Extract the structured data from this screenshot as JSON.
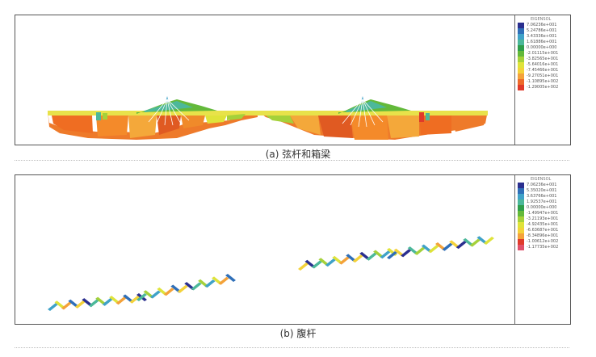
{
  "figure": {
    "panel_a": {
      "caption": "(a) 弦杆和箱梁",
      "legend_header": "EIGENSOL",
      "legend": [
        {
          "label": "7.06236e+001",
          "color": "#2b2f8f"
        },
        {
          "label": "5.24786e+001",
          "color": "#2f6fb8"
        },
        {
          "label": "3.43336e+001",
          "color": "#3fa2c8"
        },
        {
          "label": "1.61886e+001",
          "color": "#4cb89a"
        },
        {
          "label": "0.00000e+000",
          "color": "#2e9e4a"
        },
        {
          "label": "-2.01115e+001",
          "color": "#63b93a"
        },
        {
          "label": "-3.82565e+001",
          "color": "#a5d13a"
        },
        {
          "label": "-5.64016e+001",
          "color": "#dfe33a"
        },
        {
          "label": "-7.45466e+001",
          "color": "#f4d23a"
        },
        {
          "label": "-9.27051e+001",
          "color": "#f4a23a"
        },
        {
          "label": "-1.10895e+002",
          "color": "#ee6a2a"
        },
        {
          "label": "-1.29005e+002",
          "color": "#e03a2a"
        }
      ]
    },
    "panel_b": {
      "caption": "(b) 腹杆",
      "legend_header": "EIGENSOL",
      "legend": [
        {
          "label": "7.06236e+001",
          "color": "#2b2f8f"
        },
        {
          "label": "5.35020e+001",
          "color": "#2f6fb8"
        },
        {
          "label": "3.63766e+001",
          "color": "#3fa2c8"
        },
        {
          "label": "1.92537e+001",
          "color": "#4cb89a"
        },
        {
          "label": "0.00000e+000",
          "color": "#2e9e4a"
        },
        {
          "label": "-1.49947e+001",
          "color": "#63b93a"
        },
        {
          "label": "-3.21193e+001",
          "color": "#a5d13a"
        },
        {
          "label": "-4.92435e+001",
          "color": "#dfe33a"
        },
        {
          "label": "-6.63687e+001",
          "color": "#f4d23a"
        },
        {
          "label": "-8.34896e+001",
          "color": "#f4a23a"
        },
        {
          "label": "-1.00612e+002",
          "color": "#e03a2a"
        },
        {
          "label": "-1.17735e+002",
          "color": "#e0506a"
        }
      ]
    }
  }
}
